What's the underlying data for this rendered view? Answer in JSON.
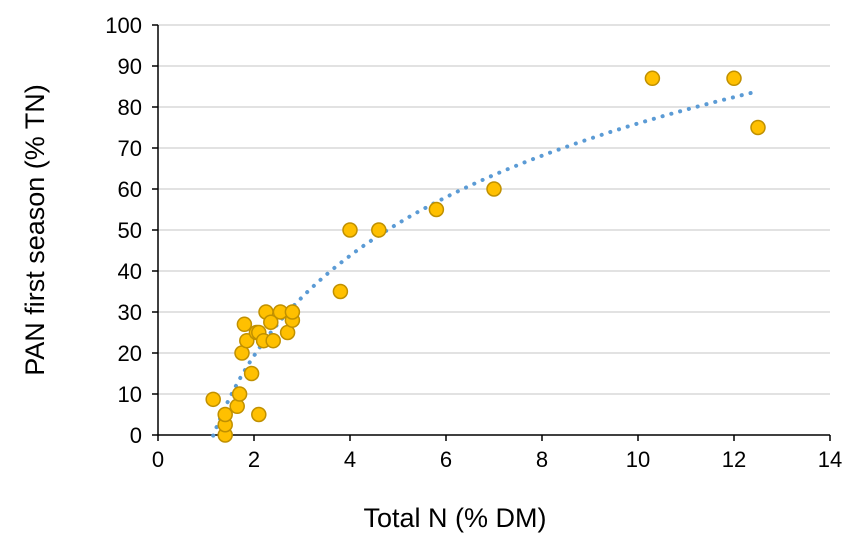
{
  "chart_data": {
    "type": "scatter",
    "xlabel": "Total N (% DM)",
    "ylabel": "PAN first season (% TN)",
    "xlim": [
      0,
      14
    ],
    "ylim": [
      0,
      100
    ],
    "xticks": [
      0,
      2,
      4,
      6,
      8,
      10,
      12,
      14
    ],
    "yticks": [
      0,
      10,
      20,
      30,
      40,
      50,
      60,
      70,
      80,
      90,
      100
    ],
    "grid": "horizontal",
    "legend": "none",
    "colors": {
      "marker_fill": "#FFC000",
      "marker_edge": "#C09000",
      "trendline": "#5B9BD5",
      "grid": "#D9D9D9"
    },
    "trendline": {
      "type": "logarithmic",
      "style": "dotted",
      "x_range": [
        1.15,
        12.5
      ]
    },
    "points": [
      {
        "x": 1.15,
        "y": 8.7
      },
      {
        "x": 1.4,
        "y": 0
      },
      {
        "x": 1.4,
        "y": 2.5
      },
      {
        "x": 1.4,
        "y": 5
      },
      {
        "x": 1.65,
        "y": 7
      },
      {
        "x": 1.7,
        "y": 10
      },
      {
        "x": 1.95,
        "y": 15
      },
      {
        "x": 2.1,
        "y": 5
      },
      {
        "x": 1.75,
        "y": 20
      },
      {
        "x": 1.85,
        "y": 23
      },
      {
        "x": 1.8,
        "y": 27
      },
      {
        "x": 2.05,
        "y": 25
      },
      {
        "x": 2.1,
        "y": 25
      },
      {
        "x": 2.2,
        "y": 23
      },
      {
        "x": 2.4,
        "y": 23
      },
      {
        "x": 2.25,
        "y": 30
      },
      {
        "x": 2.35,
        "y": 27.5
      },
      {
        "x": 2.55,
        "y": 30
      },
      {
        "x": 2.7,
        "y": 25
      },
      {
        "x": 2.8,
        "y": 28
      },
      {
        "x": 2.8,
        "y": 30
      },
      {
        "x": 3.8,
        "y": 35
      },
      {
        "x": 4.0,
        "y": 50
      },
      {
        "x": 4.6,
        "y": 50
      },
      {
        "x": 5.8,
        "y": 55
      },
      {
        "x": 7.0,
        "y": 60
      },
      {
        "x": 10.3,
        "y": 87
      },
      {
        "x": 12.0,
        "y": 87
      },
      {
        "x": 12.5,
        "y": 75
      }
    ]
  }
}
